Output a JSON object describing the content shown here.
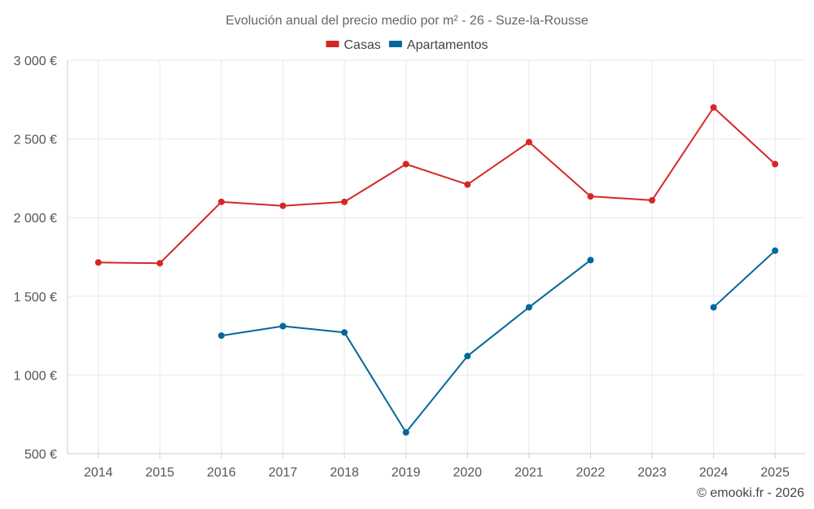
{
  "chart_data": {
    "type": "line",
    "title": "Evolución anual del precio medio por m² - 26 - Suze-la-Rousse",
    "categories": [
      "2014",
      "2015",
      "2016",
      "2017",
      "2018",
      "2019",
      "2020",
      "2021",
      "2022",
      "2023",
      "2024",
      "2025"
    ],
    "series": [
      {
        "name": "Casas",
        "color": "#d62728",
        "values": [
          1715,
          1710,
          2100,
          2075,
          2100,
          2340,
          2210,
          2480,
          2135,
          2110,
          2700,
          2340
        ]
      },
      {
        "name": "Apartamentos",
        "color": "#04679a",
        "values": [
          null,
          null,
          1250,
          1310,
          1270,
          635,
          1120,
          1430,
          1730,
          null,
          1430,
          1790
        ]
      }
    ],
    "y_ticks": [
      500,
      1000,
      1500,
      2000,
      2500,
      3000
    ],
    "y_tick_labels": [
      "500 €",
      "1 000 €",
      "1 500 €",
      "2 000 €",
      "2 500 €",
      "3 000 €"
    ],
    "ylim": [
      500,
      3000
    ],
    "xlabel": "",
    "ylabel": "",
    "legend_position": "top-center",
    "grid": true
  },
  "footer": "© emooki.fr - 2026"
}
